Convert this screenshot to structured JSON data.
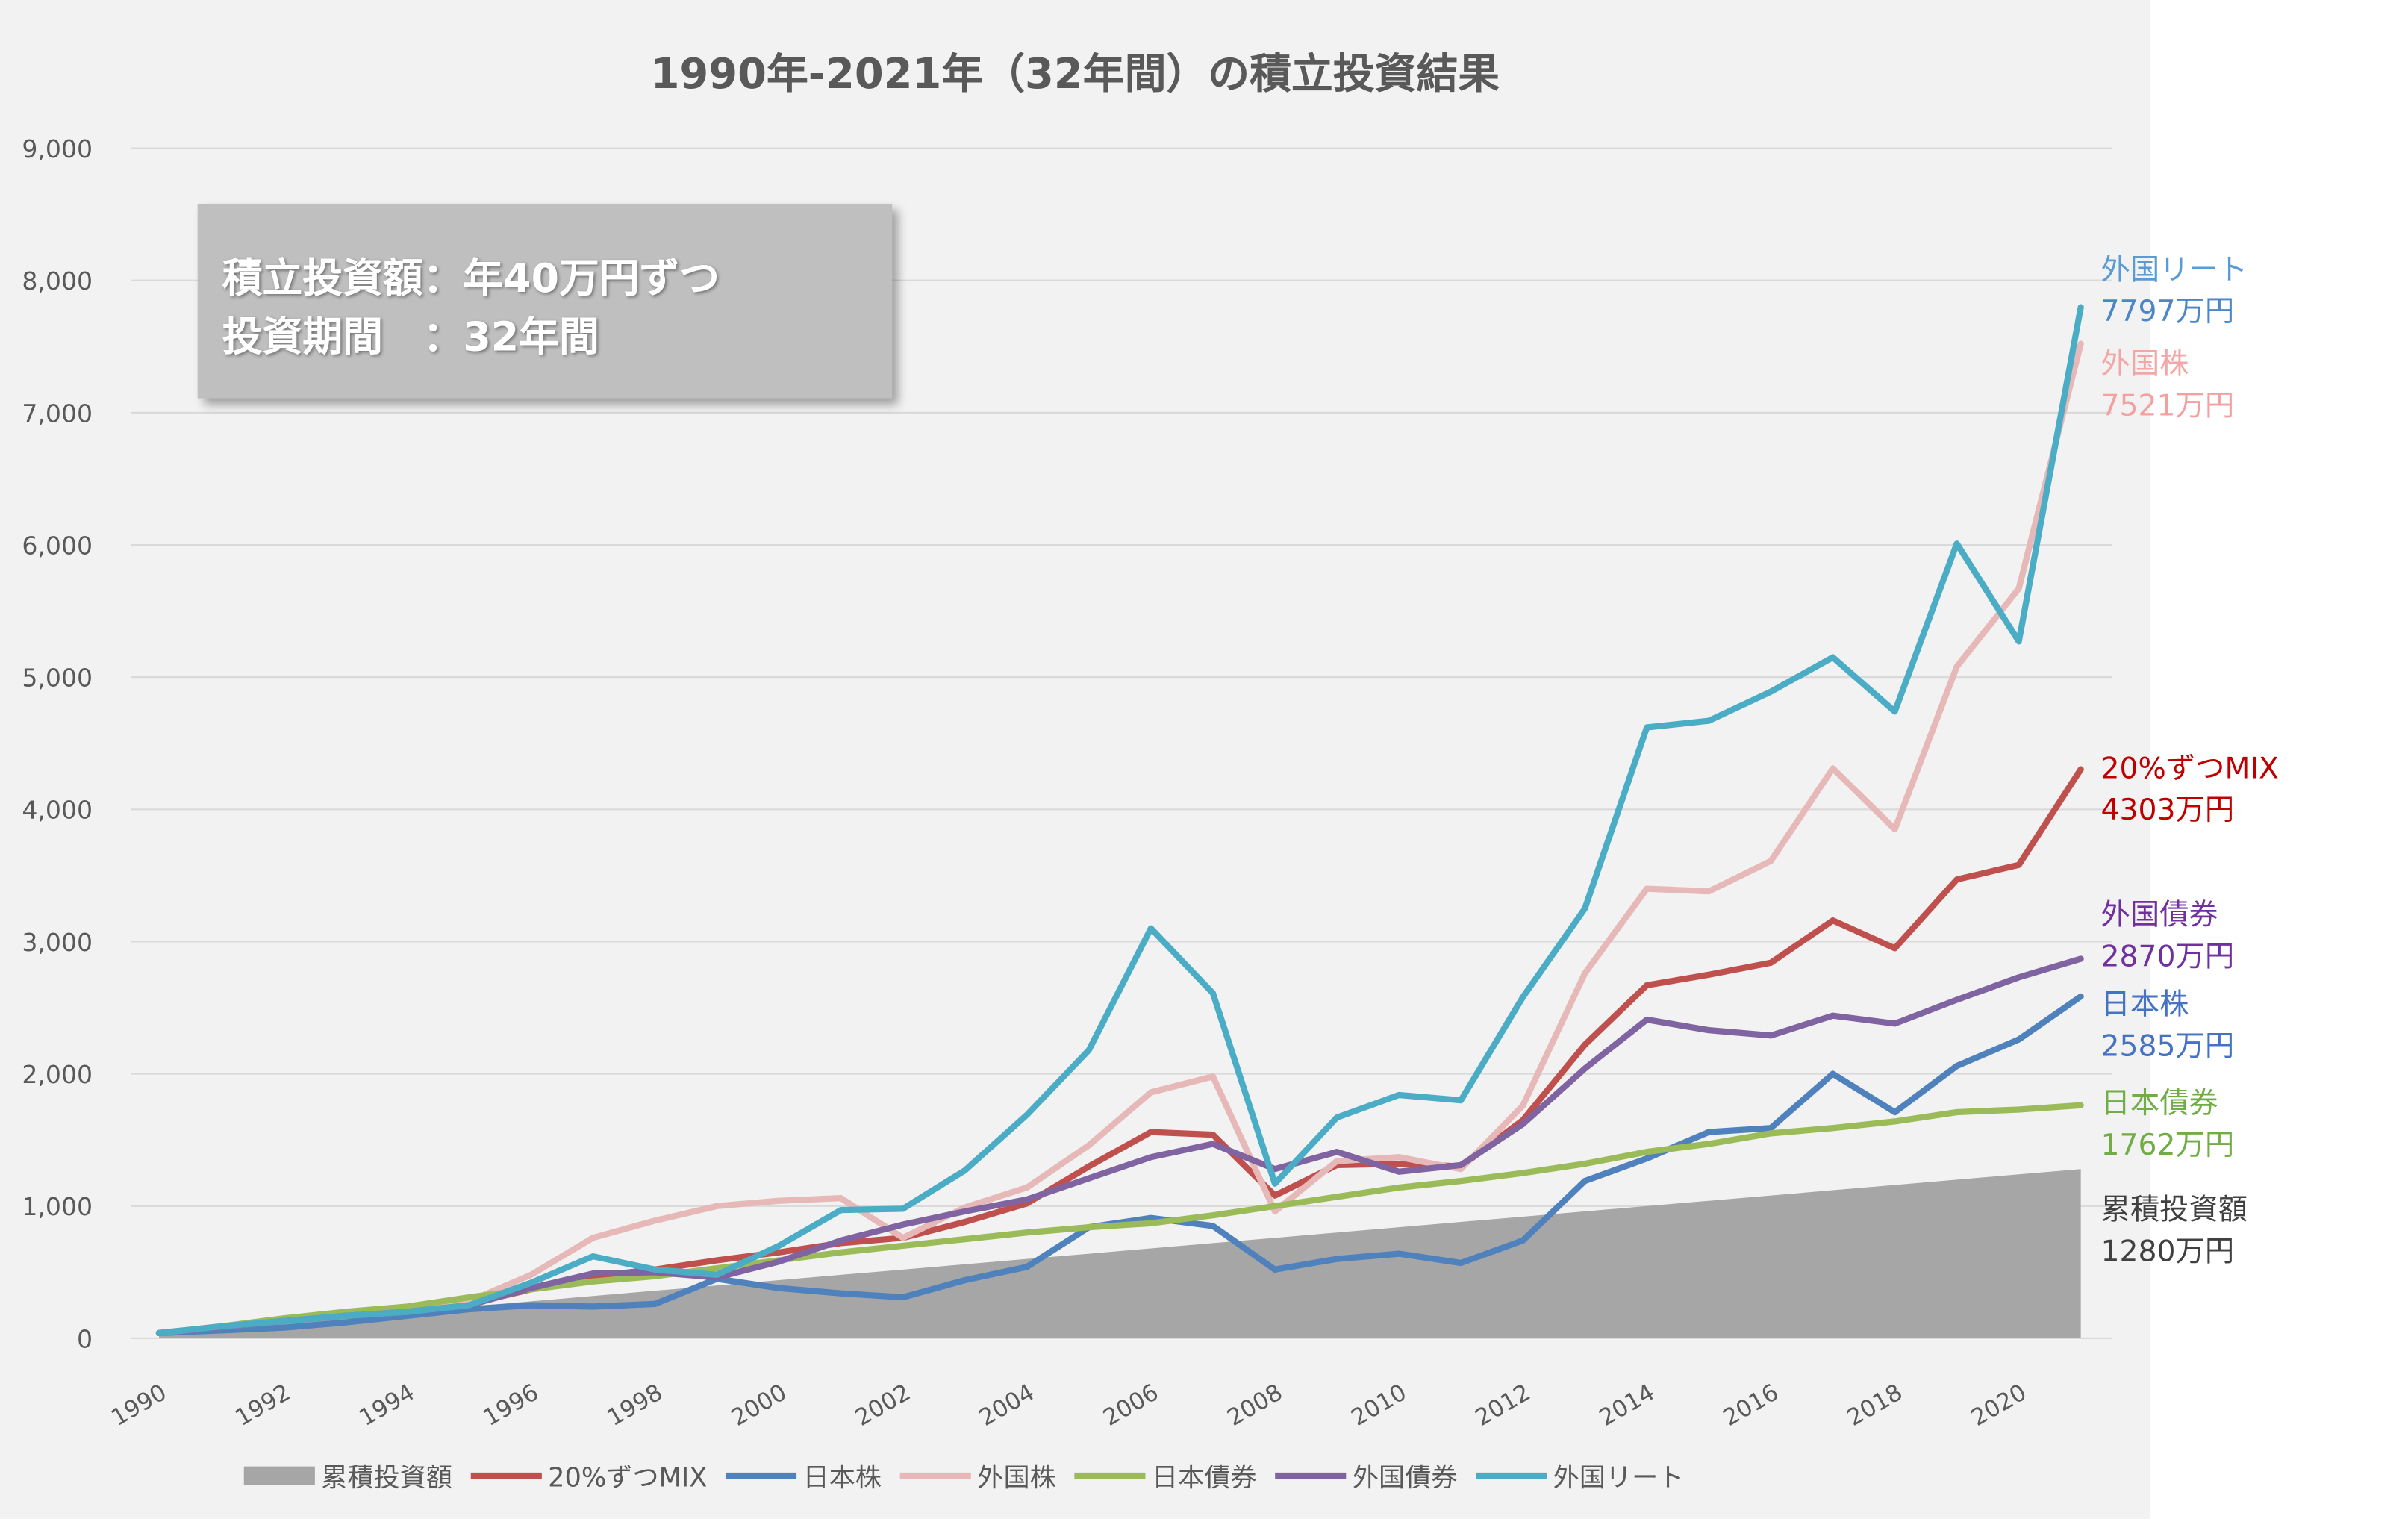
{
  "chart_data": {
    "type": "line",
    "title": "1990年-2021年（32年間）の積立投資結果",
    "xlabel": "",
    "ylabel": "",
    "ylim": [
      0,
      9000
    ],
    "yticks": [
      "0",
      "1,000",
      "2,000",
      "3,000",
      "4,000",
      "5,000",
      "6,000",
      "7,000",
      "8,000",
      "9,000"
    ],
    "ytick_values": [
      0,
      1000,
      2000,
      3000,
      4000,
      5000,
      6000,
      7000,
      8000,
      9000
    ],
    "xticks": [
      "1990",
      "1992",
      "1994",
      "1996",
      "1998",
      "2000",
      "2002",
      "2004",
      "2006",
      "2008",
      "2010",
      "2012",
      "2014",
      "2016",
      "2018",
      "2020"
    ],
    "x": [
      1990,
      1991,
      1992,
      1993,
      1994,
      1995,
      1996,
      1997,
      1998,
      1999,
      2000,
      2001,
      2002,
      2003,
      2004,
      2005,
      2006,
      2007,
      2008,
      2009,
      2010,
      2011,
      2012,
      2013,
      2014,
      2015,
      2016,
      2017,
      2018,
      2019,
      2020,
      2021
    ],
    "grid": true,
    "legend_placement": "bottom",
    "series": [
      {
        "name": "累積投資額",
        "kind": "area",
        "color": "#a6a6a6",
        "values": [
          40,
          80,
          120,
          160,
          200,
          240,
          280,
          320,
          360,
          400,
          440,
          480,
          520,
          560,
          600,
          640,
          680,
          720,
          760,
          800,
          840,
          880,
          920,
          960,
          1000,
          1040,
          1080,
          1120,
          1160,
          1200,
          1240,
          1280
        ]
      },
      {
        "name": "20%ずつMIX",
        "kind": "line",
        "color": "#c0504d",
        "values": [
          40,
          85,
          130,
          170,
          200,
          260,
          370,
          470,
          520,
          590,
          650,
          720,
          760,
          880,
          1020,
          1300,
          1560,
          1540,
          1080,
          1310,
          1320,
          1300,
          1650,
          2220,
          2670,
          2750,
          2840,
          3160,
          2950,
          3470,
          3580,
          4303
        ]
      },
      {
        "name": "日本株",
        "kind": "line",
        "color": "#4f81bd",
        "values": [
          40,
          60,
          80,
          120,
          170,
          220,
          250,
          240,
          260,
          450,
          380,
          340,
          310,
          440,
          540,
          840,
          910,
          850,
          520,
          600,
          640,
          570,
          740,
          1190,
          1360,
          1560,
          1590,
          2000,
          1710,
          2060,
          2260,
          2585
        ]
      },
      {
        "name": "外国株",
        "kind": "line",
        "color": "#e6b9b8",
        "values": [
          40,
          85,
          130,
          170,
          200,
          280,
          480,
          760,
          890,
          1000,
          1040,
          1060,
          760,
          990,
          1140,
          1460,
          1860,
          1980,
          960,
          1340,
          1370,
          1280,
          1760,
          2760,
          3400,
          3380,
          3610,
          4310,
          3850,
          5080,
          5670,
          7521
        ]
      },
      {
        "name": "日本債券",
        "kind": "line",
        "color": "#9bbb59",
        "values": [
          40,
          90,
          150,
          200,
          240,
          310,
          370,
          430,
          470,
          530,
          590,
          650,
          700,
          750,
          800,
          840,
          870,
          930,
          1000,
          1070,
          1140,
          1190,
          1250,
          1320,
          1410,
          1470,
          1550,
          1590,
          1640,
          1710,
          1730,
          1762
        ]
      },
      {
        "name": "外国債券",
        "kind": "line",
        "color": "#8064a2",
        "values": [
          40,
          85,
          130,
          170,
          200,
          250,
          380,
          490,
          500,
          460,
          580,
          740,
          860,
          960,
          1050,
          1210,
          1370,
          1470,
          1280,
          1410,
          1260,
          1310,
          1620,
          2040,
          2410,
          2330,
          2290,
          2440,
          2380,
          2560,
          2730,
          2870
        ]
      },
      {
        "name": "外国リート",
        "kind": "line",
        "color": "#4bacc6",
        "values": [
          40,
          90,
          130,
          170,
          200,
          250,
          420,
          620,
          520,
          480,
          700,
          970,
          980,
          1270,
          1690,
          2180,
          3100,
          2610,
          1170,
          1670,
          1840,
          1800,
          2580,
          3250,
          4620,
          4670,
          4890,
          5150,
          4740,
          6010,
          5270,
          7797
        ]
      }
    ],
    "end_labels": [
      {
        "name": "外国リート",
        "value": "7797万円",
        "name_color": "#5b9bd5",
        "value_color": "#4a86c8"
      },
      {
        "name": "外国株",
        "value": "7521万円",
        "name_color": "#f4a6a6",
        "value_color": "#f4a0a0"
      },
      {
        "name": "20%ずつMIX",
        "value": "4303万円",
        "name_color": "#c00000",
        "value_color": "#c00000"
      },
      {
        "name": "外国債券",
        "value": "2870万円",
        "name_color": "#7030a0",
        "value_color": "#7030a0"
      },
      {
        "name": "日本株",
        "value": "2585万円",
        "name_color": "#4472c4",
        "value_color": "#4472c4"
      },
      {
        "name": "日本債券",
        "value": "1762万円",
        "name_color": "#70ad47",
        "value_color": "#70ad47"
      },
      {
        "name": "累積投資額",
        "value": "1280万円",
        "name_color": "#404040",
        "value_color": "#404040"
      }
    ],
    "annotation": {
      "line1": "積立投資額：年40万円ずつ",
      "line2": "投資期間　：32年間"
    }
  }
}
